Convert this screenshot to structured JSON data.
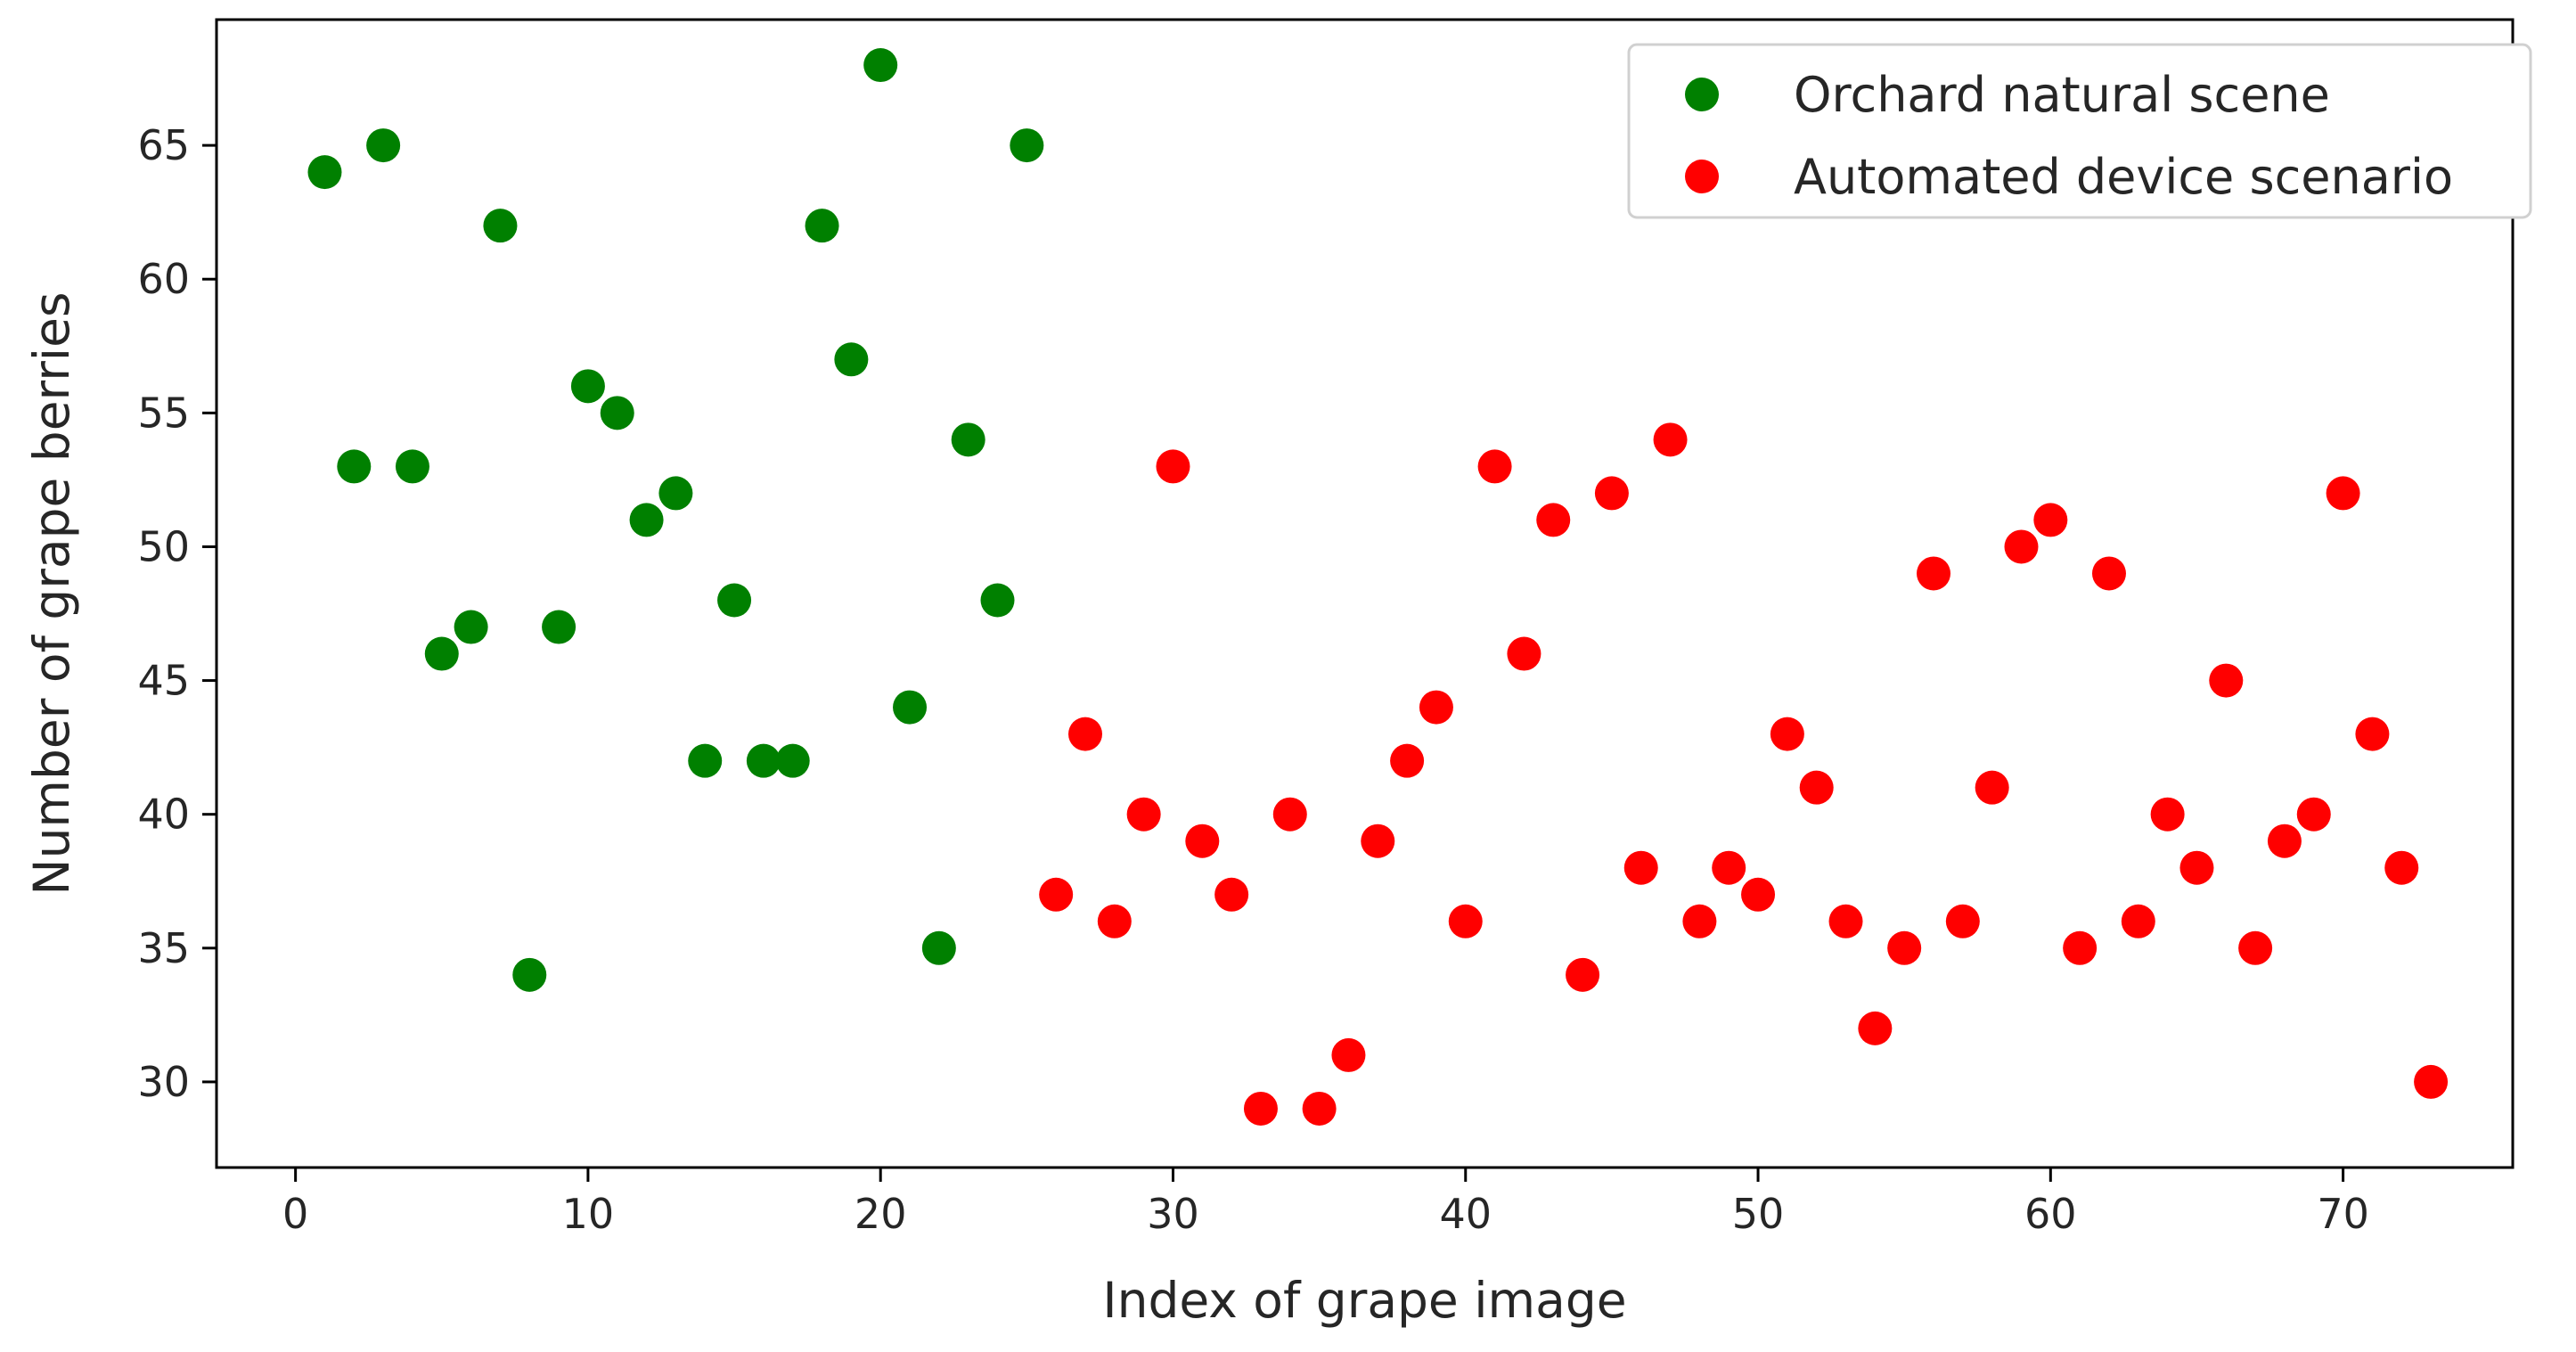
{
  "chart_data": {
    "type": "scatter",
    "title": "",
    "xlabel": "Index of grape image",
    "ylabel": "Number of grape berries",
    "xlim": [
      -2.7,
      75.8
    ],
    "ylim": [
      26.8,
      69.7
    ],
    "xticks": [
      0,
      10,
      20,
      30,
      40,
      50,
      60,
      70
    ],
    "yticks": [
      30,
      35,
      40,
      45,
      50,
      55,
      60,
      65
    ],
    "grid": false,
    "legend_position": "upper-right",
    "series": [
      {
        "name": "Orchard natural scene",
        "color": "#008000",
        "x": [
          1,
          2,
          3,
          4,
          5,
          6,
          7,
          8,
          9,
          10,
          11,
          12,
          13,
          14,
          15,
          16,
          17,
          18,
          19,
          20,
          21,
          22,
          23,
          24,
          25
        ],
        "y": [
          64,
          53,
          65,
          53,
          46,
          47,
          62,
          34,
          47,
          56,
          55,
          51,
          52,
          42,
          48,
          42,
          42,
          62,
          57,
          68,
          44,
          35,
          54,
          48,
          65
        ]
      },
      {
        "name": "Automated device scenario",
        "color": "#ff0000",
        "x": [
          26,
          27,
          28,
          29,
          30,
          31,
          32,
          33,
          34,
          35,
          36,
          37,
          38,
          39,
          40,
          41,
          42,
          43,
          44,
          45,
          46,
          47,
          48,
          49,
          50,
          51,
          52,
          53,
          54,
          55,
          56,
          57,
          58,
          59,
          60,
          61,
          62,
          63,
          64,
          65,
          66,
          67,
          68,
          69,
          70,
          71,
          72,
          73
        ],
        "y": [
          37,
          43,
          36,
          40,
          53,
          39,
          37,
          29,
          40,
          29,
          31,
          39,
          42,
          44,
          36,
          53,
          46,
          51,
          34,
          52,
          38,
          54,
          36,
          38,
          37,
          43,
          41,
          36,
          32,
          35,
          49,
          36,
          41,
          50,
          51,
          35,
          49,
          36,
          40,
          38,
          45,
          35,
          39,
          40,
          52,
          43,
          38,
          30
        ]
      }
    ]
  }
}
